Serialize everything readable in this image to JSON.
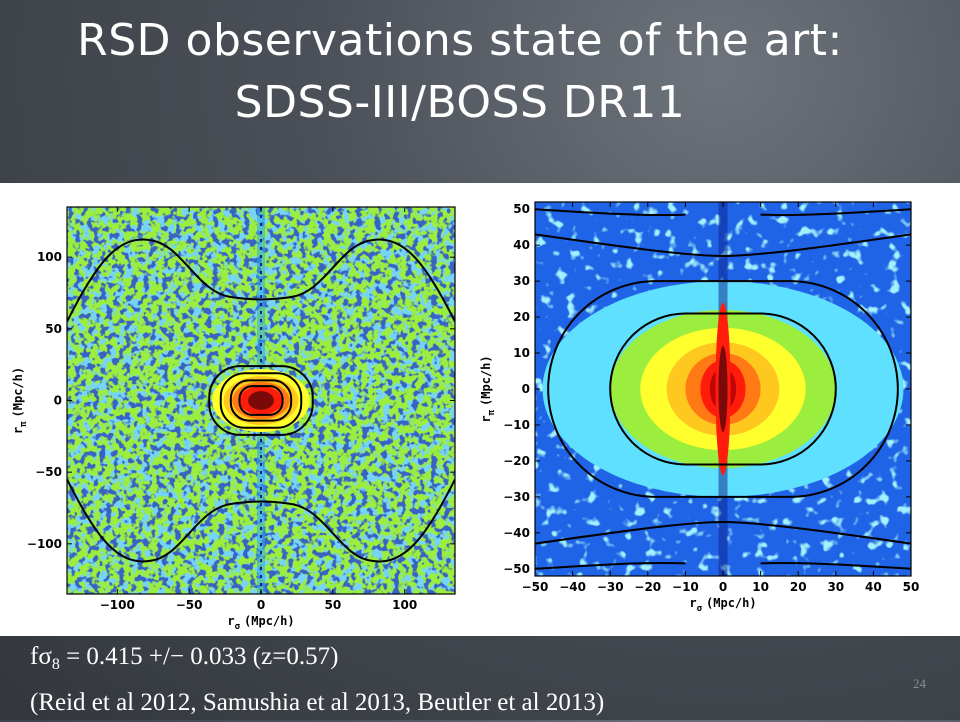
{
  "slide": {
    "title_line1": "RSD observations state of the art:",
    "title_line2": "SDSS-III/BOSS DR11",
    "caption_f": "f",
    "caption_sigma": "σ",
    "caption_sub": "8",
    "caption_value": " = 0.415 +/− 0.033 (z=0.57)",
    "caption_refs": "(Reid et al 2012, Samushia  et al 2013, Beutler et al 2013)",
    "page_number": "24"
  },
  "chart_data": [
    {
      "type": "heatmap",
      "xlabel_main": "r",
      "xlabel_sub": "σ",
      "xlabel_unit": "(Mpc/h)",
      "ylabel_main": "r",
      "ylabel_sub": "π",
      "ylabel_unit": "(Mpc/h)",
      "xlim": [
        -135,
        135
      ],
      "ylim": [
        -135,
        135
      ],
      "xticks": [
        -100,
        -50,
        0,
        50,
        100
      ],
      "yticks": [
        -100,
        -50,
        0,
        50,
        100
      ],
      "colors": [
        "#0b1f8c",
        "#1f63e6",
        "#2aa7f0",
        "#5fe0ff",
        "#9bee3d",
        "#ffff2d",
        "#ffc81e",
        "#ff7a14",
        "#ff1c0a",
        "#bf0505",
        "#7a0a0a"
      ]
    },
    {
      "type": "heatmap",
      "xlabel_main": "r",
      "xlabel_sub": "σ",
      "xlabel_unit": "(Mpc/h)",
      "ylabel_main": "r",
      "ylabel_sub": "π",
      "ylabel_unit": "(Mpc/h)",
      "xlim": [
        -50,
        50
      ],
      "ylim": [
        -52,
        52
      ],
      "xticks": [
        -50,
        -40,
        -30,
        -20,
        -10,
        0,
        10,
        20,
        30,
        40,
        50
      ],
      "yticks": [
        -50,
        -40,
        -30,
        -20,
        -10,
        0,
        10,
        20,
        30,
        40,
        50
      ],
      "colors": [
        "#0b1f8c",
        "#1f63e6",
        "#2aa7f0",
        "#5fe0ff",
        "#9bee3d",
        "#ffff2d",
        "#ffc81e",
        "#ff7a14",
        "#ff1c0a",
        "#bf0505",
        "#7a0a0a"
      ]
    }
  ]
}
